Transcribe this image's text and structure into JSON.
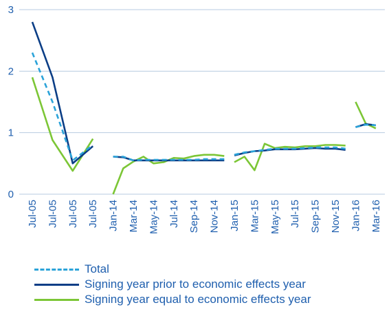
{
  "chart_data": {
    "type": "line",
    "title": "",
    "xlabel": "",
    "ylabel": "",
    "ylim": [
      0,
      3
    ],
    "yticks": [
      "0",
      "1",
      "2",
      "3"
    ],
    "grid": "horizontal",
    "legend_position": "bottom",
    "colors": {
      "Total": "#2ba3d9",
      "Signing year prior to economic effects year": "#0b3e86",
      "Signing year equal to economic effects year": "#7cc636",
      "tick_text": "#1f5fae",
      "grid": "#b7cbe1"
    },
    "x_categories": [
      "Jul-05",
      "Jul-05",
      "Jul-05",
      "Jul-05",
      "Jan-14",
      "Mar-14",
      "May-14",
      "Jul-14",
      "Sep-14",
      "Nov-14",
      "Jan-15",
      "Mar-15",
      "May-15",
      "Jul-15",
      "Sep-15",
      "Nov-15",
      "Jan-16",
      "Mar-16"
    ],
    "segments": [
      {
        "x": [
          "Jul-05",
          "Jul-05",
          "Jul-05",
          "Jul-05"
        ],
        "x_index": [
          0,
          1,
          2,
          3
        ],
        "series": [
          {
            "name": "Total",
            "values": [
              2.3,
              1.5,
              0.55,
              0.8
            ]
          },
          {
            "name": "Signing year prior to economic effects year",
            "values": [
              2.8,
              1.9,
              0.5,
              0.78
            ]
          },
          {
            "name": "Signing year equal to economic effects year",
            "values": [
              1.9,
              0.88,
              0.38,
              0.9
            ]
          }
        ]
      },
      {
        "x": [
          "Jan-14",
          "Feb-14",
          "Mar-14",
          "Apr-14",
          "May-14",
          "Jun-14",
          "Jul-14",
          "Aug-14",
          "Sep-14",
          "Oct-14",
          "Nov-14",
          "Dec-14"
        ],
        "x_index": [
          4,
          4.5,
          5,
          5.5,
          6,
          6.5,
          7,
          7.5,
          8,
          8.5,
          9,
          9.5
        ],
        "series": [
          {
            "name": "Total",
            "values": [
              0.61,
              0.61,
              0.55,
              0.56,
              0.56,
              0.56,
              0.56,
              0.56,
              0.56,
              0.57,
              0.57,
              0.57
            ]
          },
          {
            "name": "Signing year prior to economic effects year",
            "values": [
              0.61,
              0.6,
              0.55,
              0.55,
              0.55,
              0.55,
              0.55,
              0.55,
              0.55,
              0.55,
              0.55,
              0.55
            ]
          },
          {
            "name": "Signing year equal to economic effects year",
            "values": [
              0.0,
              0.42,
              0.53,
              0.61,
              0.5,
              0.52,
              0.59,
              0.58,
              0.62,
              0.64,
              0.64,
              0.62
            ]
          }
        ]
      },
      {
        "x": [
          "Jan-15",
          "Feb-15",
          "Mar-15",
          "Apr-15",
          "May-15",
          "Jun-15",
          "Jul-15",
          "Aug-15",
          "Sep-15",
          "Oct-15",
          "Nov-15",
          "Dec-15"
        ],
        "x_index": [
          10,
          10.5,
          11,
          11.5,
          12,
          12.5,
          13,
          13.5,
          14,
          14.5,
          15,
          15.5
        ],
        "series": [
          {
            "name": "Total",
            "values": [
              0.64,
              0.68,
              0.7,
              0.72,
              0.74,
              0.74,
              0.74,
              0.75,
              0.76,
              0.76,
              0.76,
              0.74
            ]
          },
          {
            "name": "Signing year prior to economic effects year",
            "values": [
              0.63,
              0.67,
              0.7,
              0.71,
              0.73,
              0.73,
              0.73,
              0.74,
              0.75,
              0.74,
              0.74,
              0.72
            ]
          },
          {
            "name": "Signing year equal to economic effects year",
            "values": [
              0.52,
              0.61,
              0.39,
              0.82,
              0.75,
              0.77,
              0.76,
              0.78,
              0.78,
              0.8,
              0.8,
              0.79
            ]
          }
        ]
      },
      {
        "x": [
          "Jan-16",
          "Feb-16",
          "Mar-16"
        ],
        "x_index": [
          16,
          16.5,
          17
        ],
        "series": [
          {
            "name": "Total",
            "values": [
              1.09,
              1.13,
              1.12
            ]
          },
          {
            "name": "Signing year prior to economic effects year",
            "values": [
              1.09,
              1.14,
              1.12
            ]
          },
          {
            "name": "Signing year equal to economic effects year",
            "values": [
              1.5,
              1.15,
              1.07
            ]
          }
        ]
      }
    ],
    "legend": [
      {
        "name": "Total",
        "style": "dashed"
      },
      {
        "name": "Signing year prior to economic effects year",
        "style": "solid"
      },
      {
        "name": "Signing year equal to economic effects year",
        "style": "solid"
      }
    ]
  }
}
